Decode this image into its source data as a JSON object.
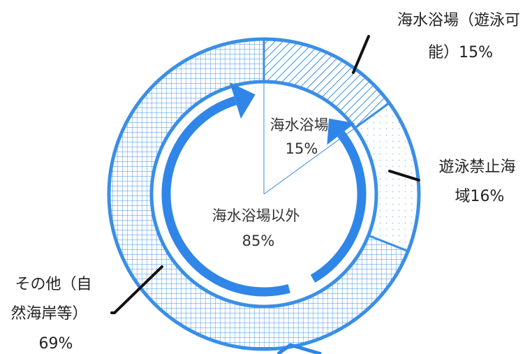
{
  "chart_data": {
    "type": "donut",
    "outer_ring": {
      "segments": [
        {
          "label_lines": [
            "海水浴場（遊泳可",
            "能）15%"
          ],
          "value": 15,
          "pattern": "diagonal"
        },
        {
          "label_lines": [
            "遊泳禁止海",
            "域16%"
          ],
          "value": 16,
          "pattern": "dots"
        },
        {
          "label_lines": [
            "その他（自",
            "然海岸等）",
            "69%"
          ],
          "value": 69,
          "pattern": "grid"
        }
      ]
    },
    "inner_division": {
      "segments": [
        {
          "label_lines": [
            "海水浴場",
            "15%"
          ],
          "value": 15
        },
        {
          "label_lines": [
            "海水浴場以外",
            "85%"
          ],
          "value": 85
        }
      ]
    },
    "colors": {
      "ring_blue": "#3a8fe6",
      "arrow_blue": "#2f86e8",
      "grid_line": "#3a8fe6",
      "leader": "#111111",
      "text": "#222222"
    }
  }
}
